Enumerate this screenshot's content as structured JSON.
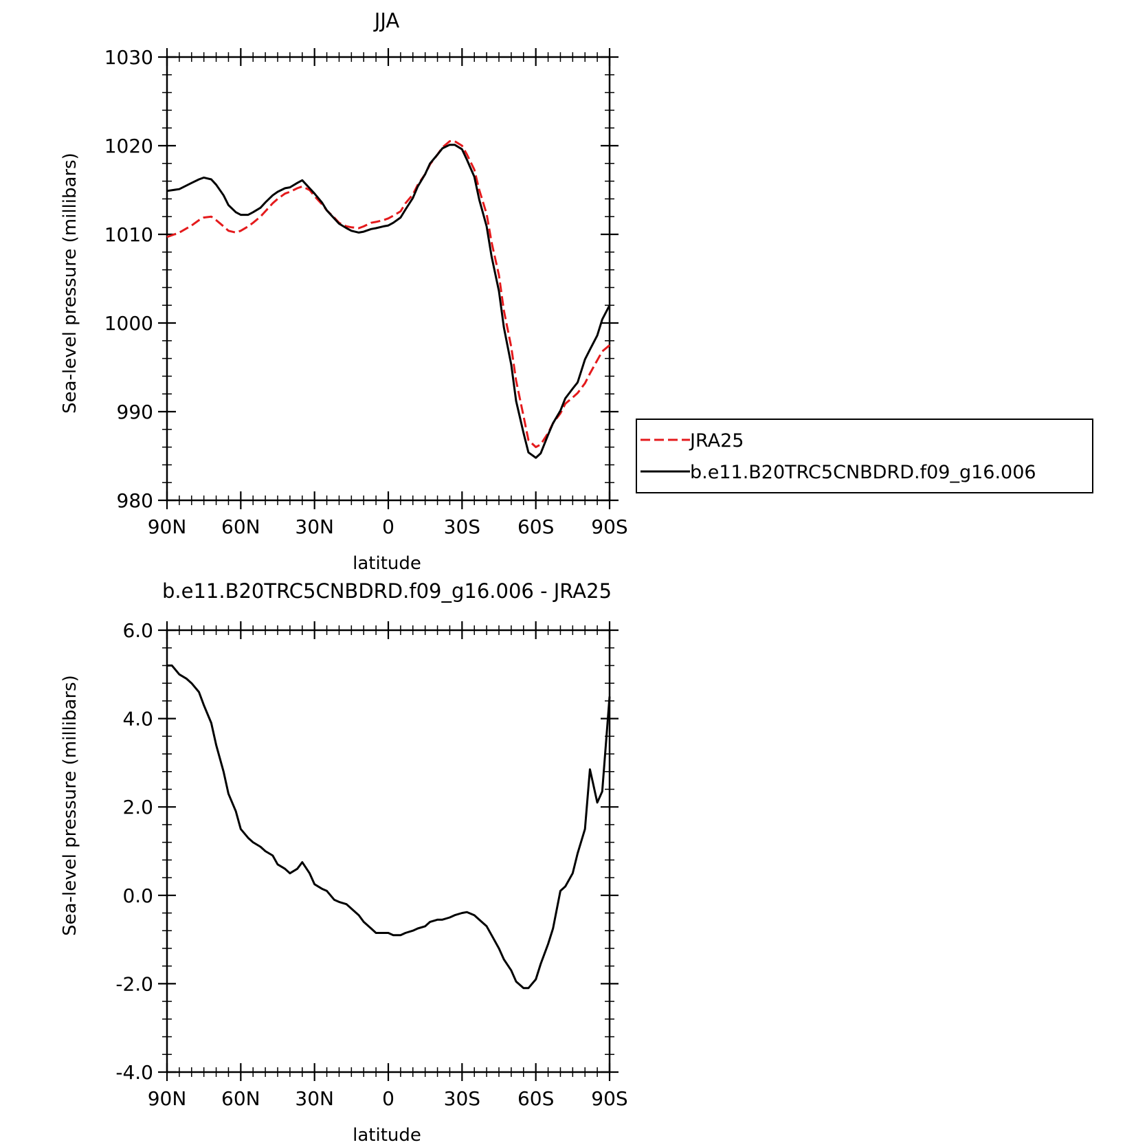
{
  "chart_data": [
    {
      "type": "line",
      "title": "JJA",
      "xlabel": "latitude",
      "ylabel": "Sea-level pressure (millibars)",
      "xlim": [
        90,
        -90
      ],
      "ylim": [
        980,
        1030
      ],
      "xticks": [
        90,
        60,
        30,
        0,
        -30,
        -60,
        -90
      ],
      "xtick_labels": [
        "90N",
        "60N",
        "30N",
        "0",
        "30S",
        "60S",
        "90S"
      ],
      "yticks": [
        980,
        990,
        1000,
        1010,
        1020,
        1030
      ],
      "ytick_labels": [
        "980",
        "990",
        "1000",
        "1010",
        "1020",
        "1030"
      ],
      "legend": "right, outside",
      "series": [
        {
          "name": "JRA25",
          "color": "#e41a1c",
          "dash": "dashed",
          "x": [
            90,
            85,
            80,
            77,
            75,
            72,
            70,
            67,
            65,
            62,
            60,
            57,
            55,
            52,
            50,
            47,
            45,
            42,
            40,
            37,
            35,
            32,
            30,
            27,
            25,
            22,
            20,
            17,
            15,
            12,
            10,
            7,
            5,
            2,
            0,
            -2,
            -5,
            -7,
            -10,
            -12,
            -15,
            -17,
            -20,
            -22,
            -25,
            -27,
            -30,
            -32,
            -35,
            -37,
            -40,
            -42,
            -45,
            -47,
            -50,
            -52,
            -55,
            -57,
            -60,
            -62,
            -65,
            -67,
            -70,
            -72,
            -75,
            -77,
            -80,
            -82,
            -85,
            -87,
            -90
          ],
          "y": [
            1009.7,
            1010.2,
            1011.0,
            1011.6,
            1011.9,
            1012.0,
            1011.6,
            1010.9,
            1010.4,
            1010.2,
            1010.4,
            1010.9,
            1011.3,
            1012.0,
            1012.6,
            1013.5,
            1014.0,
            1014.6,
            1014.8,
            1015.2,
            1015.4,
            1015.0,
            1014.3,
            1013.4,
            1012.7,
            1011.9,
            1011.3,
            1010.9,
            1010.8,
            1010.7,
            1010.9,
            1011.3,
            1011.4,
            1011.6,
            1011.8,
            1012.1,
            1012.6,
            1013.5,
            1014.5,
            1015.6,
            1016.8,
            1017.9,
            1019.0,
            1019.8,
            1020.5,
            1020.5,
            1020.0,
            1019.0,
            1017.3,
            1015.0,
            1012.3,
            1009.1,
            1005.4,
            1001.4,
            997.3,
            993.5,
            989.5,
            986.8,
            986.0,
            986.3,
            987.6,
            988.7,
            989.8,
            990.9,
            991.6,
            992.1,
            993.2,
            994.3,
            995.8,
            996.8,
            997.5
          ]
        },
        {
          "name": "b.e11.B20TRC5CNBDRD.f09_g16.006",
          "color": "#000000",
          "dash": "solid",
          "x": [
            90,
            85,
            80,
            77,
            75,
            72,
            70,
            67,
            65,
            62,
            60,
            57,
            55,
            52,
            50,
            47,
            45,
            42,
            40,
            37,
            35,
            32,
            30,
            27,
            25,
            22,
            20,
            17,
            15,
            12,
            10,
            7,
            5,
            2,
            0,
            -2,
            -5,
            -7,
            -10,
            -12,
            -15,
            -17,
            -20,
            -22,
            -25,
            -27,
            -30,
            -32,
            -35,
            -37,
            -40,
            -42,
            -45,
            -47,
            -50,
            -52,
            -55,
            -57,
            -60,
            -62,
            -65,
            -67,
            -70,
            -72,
            -75,
            -77,
            -80,
            -82,
            -85,
            -87,
            -90
          ],
          "y": [
            1014.9,
            1015.1,
            1015.8,
            1016.2,
            1016.4,
            1016.2,
            1015.6,
            1014.4,
            1013.3,
            1012.5,
            1012.2,
            1012.2,
            1012.5,
            1013.0,
            1013.6,
            1014.4,
            1014.8,
            1015.2,
            1015.3,
            1015.8,
            1016.1,
            1015.2,
            1014.6,
            1013.6,
            1012.7,
            1011.8,
            1011.2,
            1010.7,
            1010.4,
            1010.2,
            1010.3,
            1010.6,
            1010.7,
            1010.9,
            1011.0,
            1011.3,
            1011.9,
            1012.8,
            1014.1,
            1015.4,
            1016.8,
            1018.0,
            1019.0,
            1019.7,
            1020.1,
            1020.1,
            1019.6,
            1018.4,
            1016.5,
            1013.9,
            1010.9,
            1007.5,
            1003.6,
            999.5,
            995.3,
            991.2,
            987.6,
            985.4,
            984.8,
            985.3,
            987.4,
            988.7,
            990.1,
            991.5,
            992.6,
            993.3,
            995.9,
            997.0,
            998.6,
            1000.4,
            1002.0
          ]
        }
      ]
    },
    {
      "type": "line",
      "title": "b.e11.B20TRC5CNBDRD.f09_g16.006 - JRA25",
      "xlabel": "latitude",
      "ylabel": "Sea-level pressure (millibars)",
      "xlim": [
        90,
        -90
      ],
      "ylim": [
        -4.0,
        6.0
      ],
      "xticks": [
        90,
        60,
        30,
        0,
        -30,
        -60,
        -90
      ],
      "xtick_labels": [
        "90N",
        "60N",
        "30N",
        "0",
        "30S",
        "60S",
        "90S"
      ],
      "yticks": [
        -4.0,
        -2.0,
        0.0,
        2.0,
        4.0,
        6.0
      ],
      "ytick_labels": [
        "-4.0",
        "-2.0",
        "0.0",
        "2.0",
        "4.0",
        "6.0"
      ],
      "series": [
        {
          "color": "#000000",
          "dash": "solid",
          "x": [
            90,
            88,
            85,
            82,
            80,
            77,
            75,
            72,
            70,
            67,
            65,
            62,
            60,
            57,
            55,
            52,
            50,
            47,
            45,
            42,
            40,
            37,
            35,
            32,
            30,
            27,
            25,
            22,
            20,
            17,
            15,
            12,
            10,
            7,
            5,
            2,
            0,
            -2,
            -5,
            -7,
            -10,
            -12,
            -15,
            -17,
            -20,
            -22,
            -25,
            -27,
            -30,
            -32,
            -35,
            -37,
            -40,
            -42,
            -45,
            -47,
            -50,
            -52,
            -55,
            -57,
            -60,
            -62,
            -65,
            -67,
            -70,
            -72,
            -75,
            -77,
            -80,
            -82,
            -83,
            -85,
            -87,
            -90
          ],
          "y": [
            5.2,
            5.2,
            5.0,
            4.9,
            4.8,
            4.6,
            4.3,
            3.9,
            3.4,
            2.8,
            2.3,
            1.9,
            1.5,
            1.3,
            1.2,
            1.1,
            1.0,
            0.9,
            0.7,
            0.6,
            0.5,
            0.6,
            0.75,
            0.5,
            0.25,
            0.15,
            0.1,
            -0.1,
            -0.15,
            -0.2,
            -0.3,
            -0.45,
            -0.6,
            -0.75,
            -0.85,
            -0.85,
            -0.85,
            -0.9,
            -0.9,
            -0.85,
            -0.8,
            -0.75,
            -0.7,
            -0.6,
            -0.55,
            -0.55,
            -0.5,
            -0.45,
            -0.4,
            -0.38,
            -0.45,
            -0.55,
            -0.7,
            -0.9,
            -1.2,
            -1.45,
            -1.7,
            -1.95,
            -2.1,
            -2.1,
            -1.9,
            -1.55,
            -1.1,
            -0.75,
            0.1,
            0.2,
            0.5,
            0.95,
            1.5,
            2.85,
            2.6,
            2.1,
            2.35,
            4.5
          ]
        }
      ]
    }
  ]
}
